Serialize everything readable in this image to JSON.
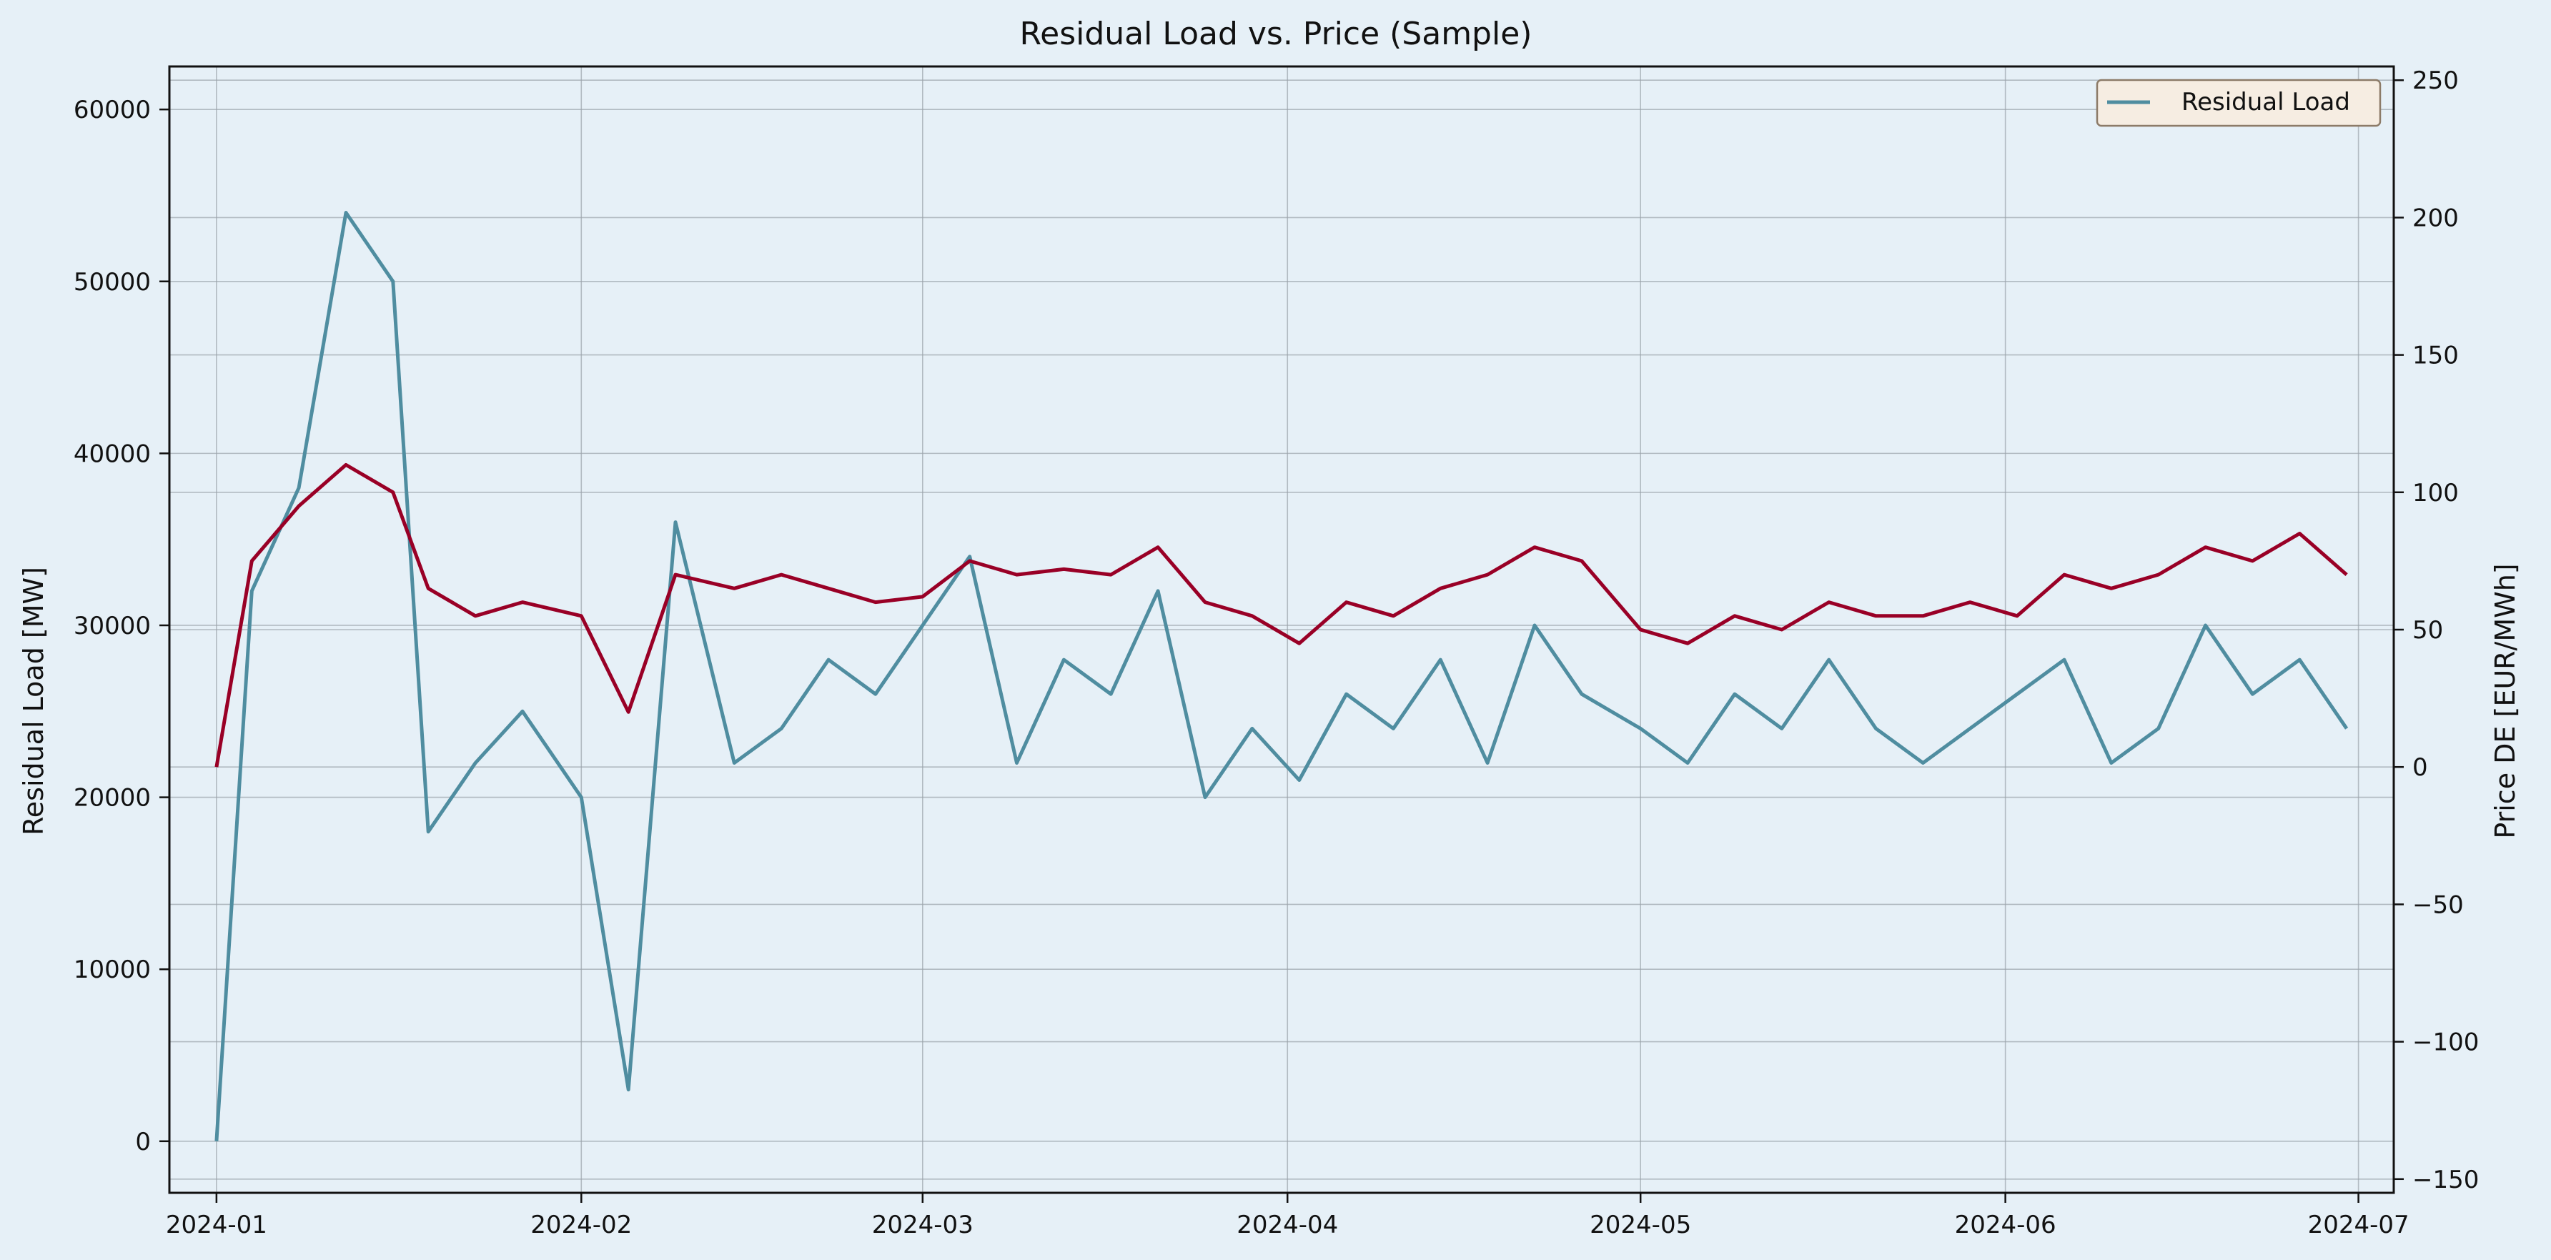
{
  "chart_data": {
    "type": "line",
    "title": "Residual Load vs. Price (Sample)",
    "xlabel": "",
    "ylabel_left": "Residual Load [MW]",
    "ylabel_right": "Price DE [EUR/MWh]",
    "x_range": [
      "2023-12-28",
      "2024-07-04"
    ],
    "ylim_left": [
      -3000,
      62500
    ],
    "ylim_right": [
      -155,
      255
    ],
    "x_ticks": [
      "2024-01",
      "2024-02",
      "2024-03",
      "2024-04",
      "2024-05",
      "2024-06",
      "2024-07"
    ],
    "y_ticks_left": [
      0,
      10000,
      20000,
      30000,
      40000,
      50000,
      60000
    ],
    "y_ticks_right": [
      -150,
      -100,
      -50,
      0,
      50,
      100,
      150,
      200,
      250
    ],
    "y_tick_labels_right": [
      "−150",
      "−100",
      "−50",
      "0",
      "50",
      "100",
      "150",
      "200",
      "250"
    ],
    "grid": true,
    "legend": {
      "placement": "top-right",
      "entries": [
        "Residual Load"
      ]
    },
    "colors": {
      "background": "#e6f0f7",
      "residual_load": "#4f8da0",
      "price": "#990026",
      "grid": "#9aa3aa",
      "legend_fill": "#f6ede2",
      "legend_border": "#8c7b68"
    },
    "series": [
      {
        "name": "Residual Load",
        "axis": "left",
        "x": [
          "2024-01-01",
          "2024-01-04",
          "2024-01-08",
          "2024-01-12",
          "2024-01-16",
          "2024-01-19",
          "2024-01-23",
          "2024-01-27",
          "2024-02-01",
          "2024-02-05",
          "2024-02-09",
          "2024-02-14",
          "2024-02-18",
          "2024-02-22",
          "2024-02-26",
          "2024-03-01",
          "2024-03-05",
          "2024-03-09",
          "2024-03-13",
          "2024-03-17",
          "2024-03-21",
          "2024-03-25",
          "2024-03-29",
          "2024-04-02",
          "2024-04-06",
          "2024-04-10",
          "2024-04-14",
          "2024-04-18",
          "2024-04-22",
          "2024-04-26",
          "2024-05-01",
          "2024-05-05",
          "2024-05-09",
          "2024-05-13",
          "2024-05-17",
          "2024-05-21",
          "2024-05-25",
          "2024-05-29",
          "2024-06-02",
          "2024-06-06",
          "2024-06-10",
          "2024-06-14",
          "2024-06-18",
          "2024-06-22",
          "2024-06-26",
          "2024-06-30"
        ],
        "values": [
          0,
          32000,
          38000,
          54000,
          50000,
          18000,
          22000,
          25000,
          20000,
          3000,
          36000,
          22000,
          24000,
          28000,
          26000,
          30000,
          34000,
          22000,
          28000,
          26000,
          32000,
          20000,
          24000,
          21000,
          26000,
          24000,
          28000,
          22000,
          30000,
          26000,
          24000,
          22000,
          26000,
          24000,
          28000,
          24000,
          22000,
          24000,
          26000,
          28000,
          22000,
          24000,
          30000,
          26000,
          28000,
          24000
        ]
      },
      {
        "name": "Price DE",
        "axis": "right",
        "x": [
          "2024-01-01",
          "2024-01-04",
          "2024-01-08",
          "2024-01-12",
          "2024-01-16",
          "2024-01-19",
          "2024-01-23",
          "2024-01-27",
          "2024-02-01",
          "2024-02-05",
          "2024-02-09",
          "2024-02-14",
          "2024-02-18",
          "2024-02-22",
          "2024-02-26",
          "2024-03-01",
          "2024-03-05",
          "2024-03-09",
          "2024-03-13",
          "2024-03-17",
          "2024-03-21",
          "2024-03-25",
          "2024-03-29",
          "2024-04-02",
          "2024-04-06",
          "2024-04-10",
          "2024-04-14",
          "2024-04-18",
          "2024-04-22",
          "2024-04-26",
          "2024-05-01",
          "2024-05-05",
          "2024-05-09",
          "2024-05-13",
          "2024-05-17",
          "2024-05-21",
          "2024-05-25",
          "2024-05-29",
          "2024-06-02",
          "2024-06-06",
          "2024-06-10",
          "2024-06-14",
          "2024-06-18",
          "2024-06-22",
          "2024-06-26",
          "2024-06-30"
        ],
        "values": [
          0,
          75,
          95,
          110,
          100,
          65,
          55,
          60,
          55,
          20,
          70,
          65,
          70,
          65,
          60,
          62,
          75,
          70,
          72,
          70,
          80,
          60,
          55,
          45,
          60,
          55,
          65,
          70,
          80,
          75,
          50,
          45,
          55,
          50,
          60,
          55,
          55,
          60,
          55,
          70,
          65,
          70,
          80,
          75,
          85,
          70
        ]
      }
    ]
  }
}
